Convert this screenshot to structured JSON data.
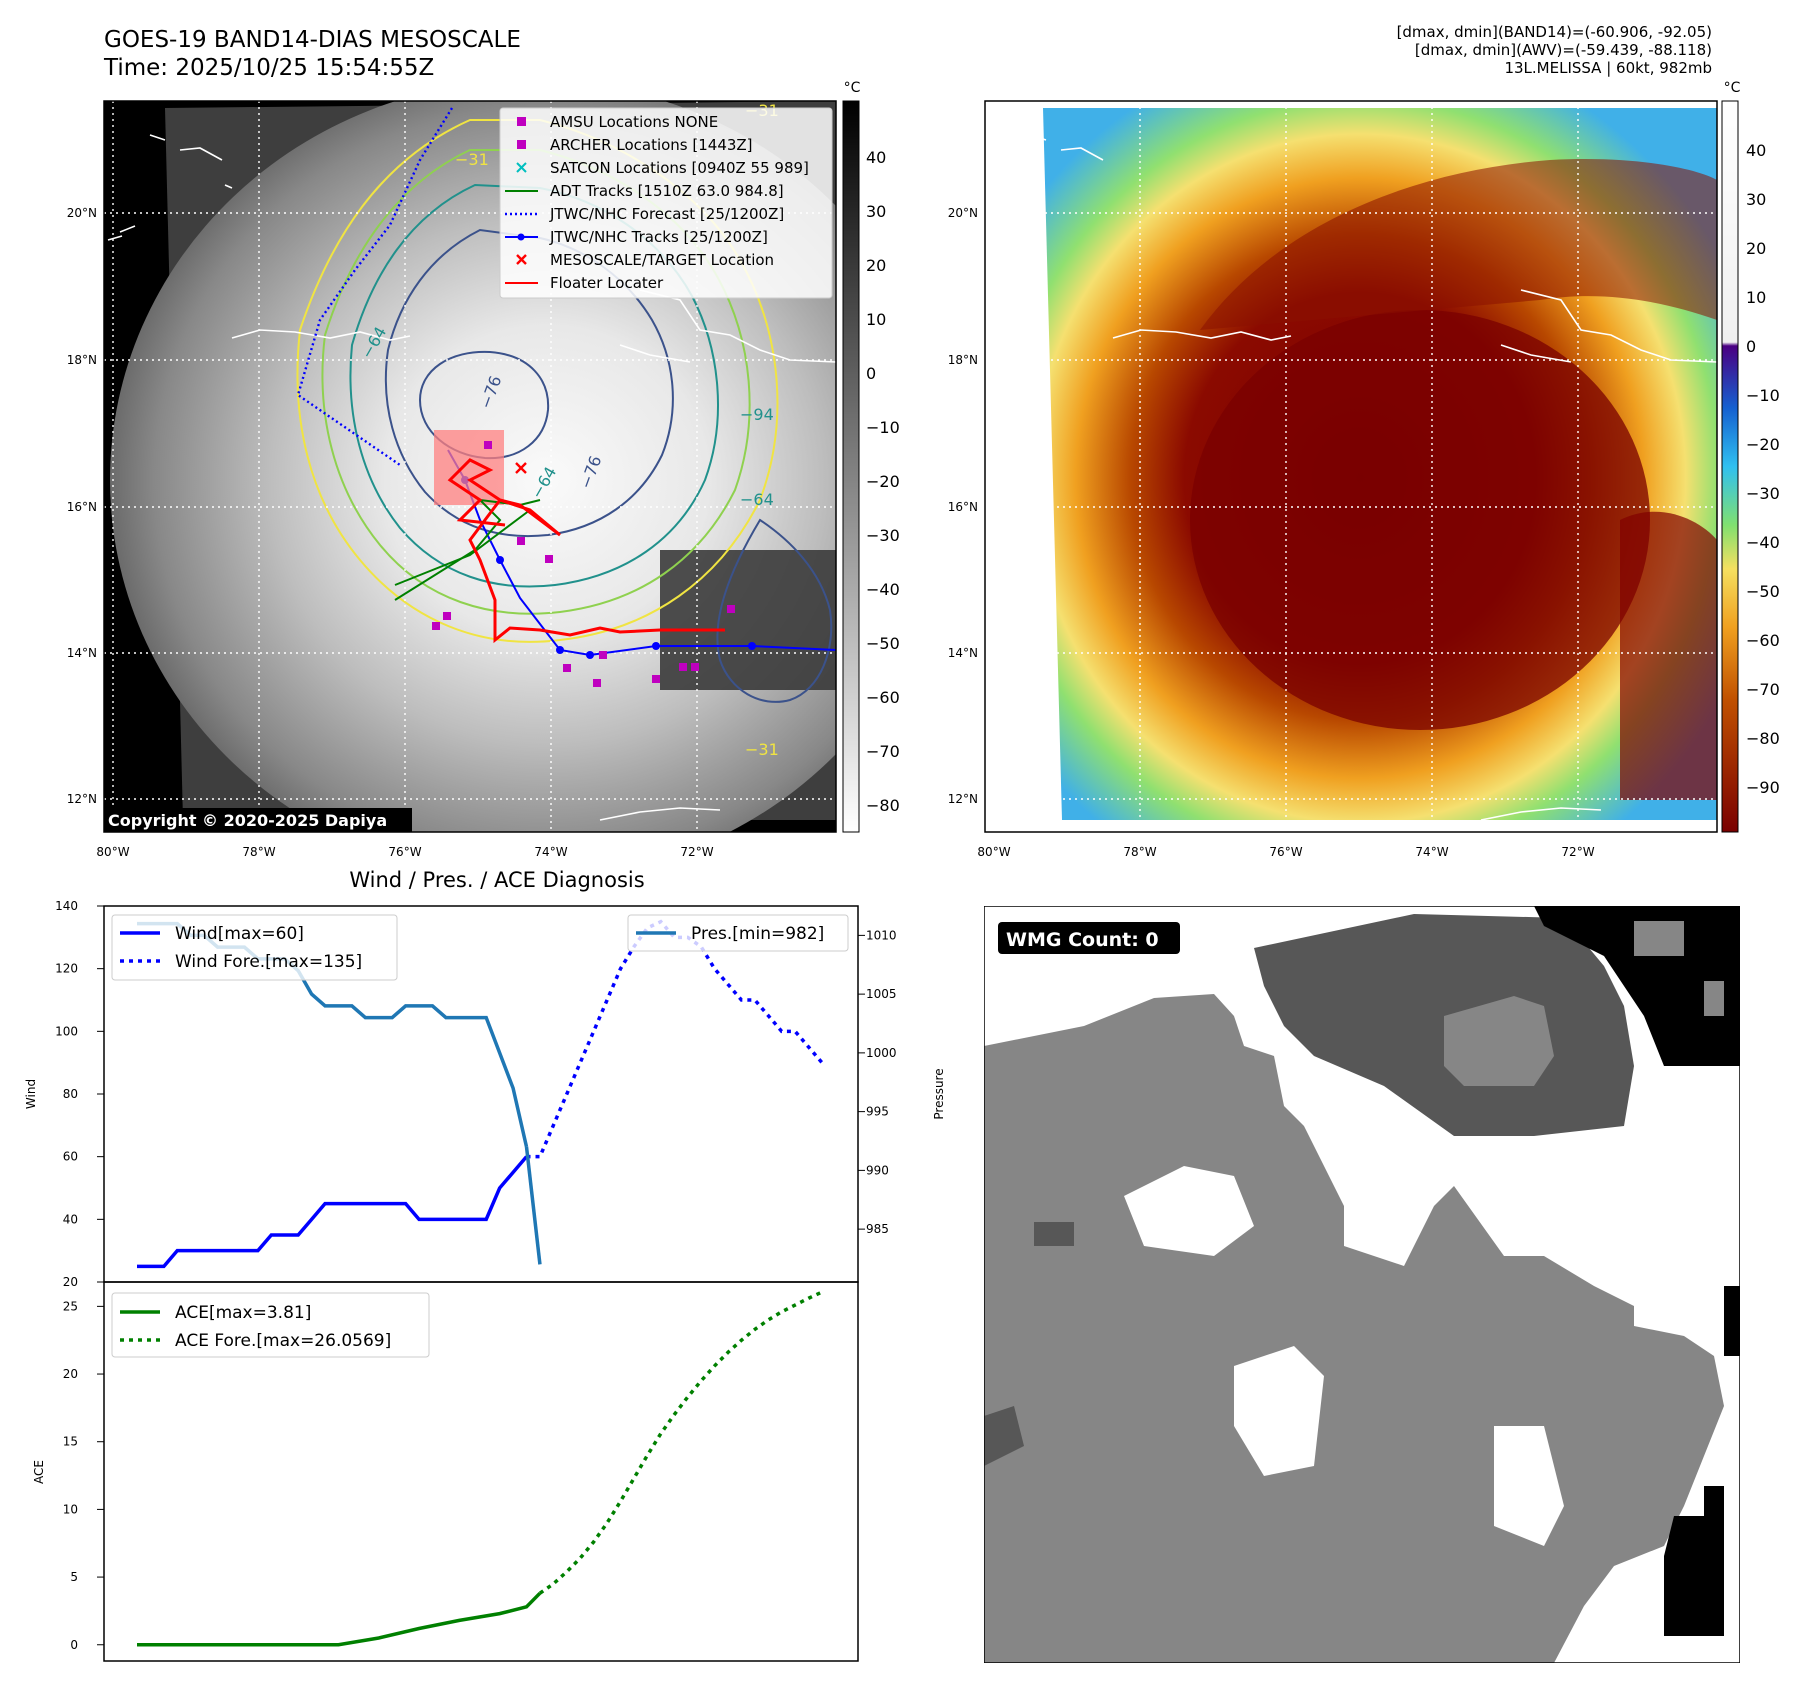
{
  "header": {
    "title_line1": "GOES-19 BAND14-DIAS MESOSCALE",
    "title_line2": "Time: 2025/10/25 15:54:55Z",
    "info_line1": "[dmax, dmin](BAND14)=(-60.906, -92.05)",
    "info_line2": "[dmax, dmin](AWV)=(-59.439, -88.118)",
    "info_line3": "13L.MELISSA | 60kt, 982mb"
  },
  "map_axes": {
    "lon_ticks": [
      "80°W",
      "78°W",
      "76°W",
      "74°W",
      "72°W"
    ],
    "lat_ticks": [
      "20°N",
      "18°N",
      "16°N",
      "14°N",
      "12°N"
    ]
  },
  "left_map": {
    "copyright": "Copyright © 2020-2025 Dapiya",
    "colorbar_unit": "°C",
    "colorbar_ticks": [
      "40",
      "30",
      "20",
      "10",
      "0",
      "−10",
      "−20",
      "−30",
      "−40",
      "−50",
      "−60",
      "−70",
      "−80"
    ],
    "contour_labels": [
      "−64",
      "−64",
      "−76",
      "−76",
      "−64",
      "−94",
      "−31",
      "−31",
      "−31"
    ],
    "legend": [
      {
        "label": "AMSU Locations NONE",
        "color": "#bf00bf",
        "marker": "square"
      },
      {
        "label": "ARCHER Locations [1443Z]",
        "color": "#bf00bf",
        "marker": "square"
      },
      {
        "label": "SATCON Locations [0940Z 55 989]",
        "color": "#00bfbf",
        "marker": "x"
      },
      {
        "label": "ADT Tracks [1510Z 63.0 984.8]",
        "color": "#008000",
        "marker": "line"
      },
      {
        "label": "JTWC/NHC Forecast [25/1200Z]",
        "color": "#0000ff",
        "marker": "dotted"
      },
      {
        "label": "JTWC/NHC Tracks [25/1200Z]",
        "color": "#0000ff",
        "marker": "line-dot"
      },
      {
        "label": "MESOSCALE/TARGET Location",
        "color": "#ff0000",
        "marker": "x"
      },
      {
        "label": "Floater Locater",
        "color": "#ff0000",
        "marker": "line"
      }
    ]
  },
  "right_map": {
    "colorbar_unit": "°C",
    "colorbar_ticks": [
      "40",
      "30",
      "20",
      "10",
      "0",
      "−10",
      "−20",
      "−30",
      "−40",
      "−50",
      "−60",
      "−70",
      "−80",
      "−90"
    ]
  },
  "wmg_panel": {
    "label": "WMG Count: 0"
  },
  "chart_data": [
    {
      "type": "line",
      "title": "Wind / Pres. / ACE Diagnosis",
      "ylabel": "Wind",
      "ylim": [
        20,
        140
      ],
      "yticks": [
        "140",
        "120",
        "100",
        "80",
        "60",
        "40",
        "20"
      ],
      "y2label": "Pressure",
      "y2lim": [
        980.5,
        1012.5
      ],
      "y2ticks": [
        "1010",
        "1005",
        "1000",
        "995",
        "990",
        "985"
      ],
      "x": [
        0,
        1,
        2,
        3,
        4,
        5,
        6,
        7,
        8,
        9,
        10,
        11,
        12,
        13,
        14,
        15,
        16,
        17,
        18,
        19,
        20,
        21,
        22,
        23,
        24,
        25,
        26,
        27,
        28,
        29,
        30,
        31,
        32,
        33,
        34,
        35,
        36,
        37,
        38,
        39,
        40,
        41,
        42,
        43,
        44,
        45,
        46,
        47,
        48,
        49,
        50,
        51
      ],
      "series": [
        {
          "name": "Wind[max=60]",
          "axis": "left",
          "color": "#0000ff",
          "style": "solid",
          "x": [
            0,
            1,
            2,
            3,
            4,
            5,
            6,
            7,
            8,
            9,
            10,
            11,
            12,
            13,
            14,
            15,
            16,
            17,
            18,
            19,
            20,
            21,
            22,
            23,
            24,
            25,
            26,
            27,
            28,
            29
          ],
          "values": [
            25,
            25,
            25,
            30,
            30,
            30,
            30,
            30,
            30,
            30,
            35,
            35,
            35,
            40,
            45,
            45,
            45,
            45,
            45,
            45,
            45,
            40,
            40,
            40,
            40,
            40,
            40,
            50,
            55,
            60
          ]
        },
        {
          "name": "Wind Fore.[max=135]",
          "axis": "left",
          "color": "#0000ff",
          "style": "dotted",
          "x": [
            29,
            30,
            31,
            32,
            33,
            34,
            35,
            36,
            37,
            38,
            39,
            40,
            41,
            42,
            43,
            44,
            45,
            46,
            47,
            48,
            49,
            50,
            51
          ],
          "values": [
            60,
            60,
            70,
            80,
            90,
            100,
            110,
            120,
            127,
            133,
            135,
            130,
            130,
            127,
            120,
            115,
            110,
            110,
            105,
            100,
            100,
            95,
            90
          ]
        },
        {
          "name": "Pres.[min=982]",
          "axis": "right",
          "color": "#1f77b4",
          "style": "solid",
          "x": [
            0,
            1,
            2,
            3,
            4,
            5,
            6,
            7,
            8,
            9,
            10,
            11,
            12,
            13,
            14,
            15,
            16,
            17,
            18,
            19,
            20,
            21,
            22,
            23,
            24,
            25,
            26,
            27,
            28,
            29
          ],
          "values": [
            1011,
            1011,
            1011,
            1011,
            1010,
            1010,
            1009,
            1009,
            1009,
            1008,
            1008,
            1008,
            1007,
            1005,
            1004,
            1004,
            1004,
            1003,
            1003,
            1003,
            1004,
            1004,
            1004,
            1003,
            1003,
            1003,
            1003,
            1000,
            997,
            992
          ]
        },
        {
          "name": "",
          "axis": "right",
          "color": "#1f77b4",
          "style": "solid",
          "x": [
            29,
            30
          ],
          "values": [
            992,
            982
          ]
        }
      ],
      "legend_placement": [
        "upper-left",
        "upper-right"
      ]
    },
    {
      "type": "line",
      "ylabel": "ACE",
      "ylim": [
        -1.2,
        26.8
      ],
      "yticks": [
        "25",
        "20",
        "15",
        "10",
        "5",
        "0"
      ],
      "series": [
        {
          "name": "ACE[max=3.81]",
          "color": "#008000",
          "style": "solid",
          "x": [
            0,
            3,
            6,
            9,
            12,
            15,
            18,
            21,
            24,
            27,
            29,
            30
          ],
          "values": [
            0,
            0,
            0,
            0,
            0,
            0,
            0.5,
            1.2,
            1.8,
            2.3,
            2.8,
            3.81
          ]
        },
        {
          "name": "ACE Fore.[max=26.0569]",
          "color": "#008000",
          "style": "dotted",
          "x": [
            30,
            31,
            32,
            33,
            34,
            35,
            36,
            37,
            38,
            39,
            40,
            41,
            42,
            43,
            44,
            45,
            46,
            47,
            48,
            49,
            50,
            51
          ],
          "values": [
            3.81,
            4.5,
            5.4,
            6.4,
            7.6,
            9.0,
            10.6,
            12.3,
            14.0,
            15.6,
            17.0,
            18.3,
            19.5,
            20.6,
            21.6,
            22.5,
            23.3,
            24.0,
            24.6,
            25.1,
            25.6,
            26.0569
          ]
        }
      ],
      "legend_placement": "upper-left"
    }
  ]
}
